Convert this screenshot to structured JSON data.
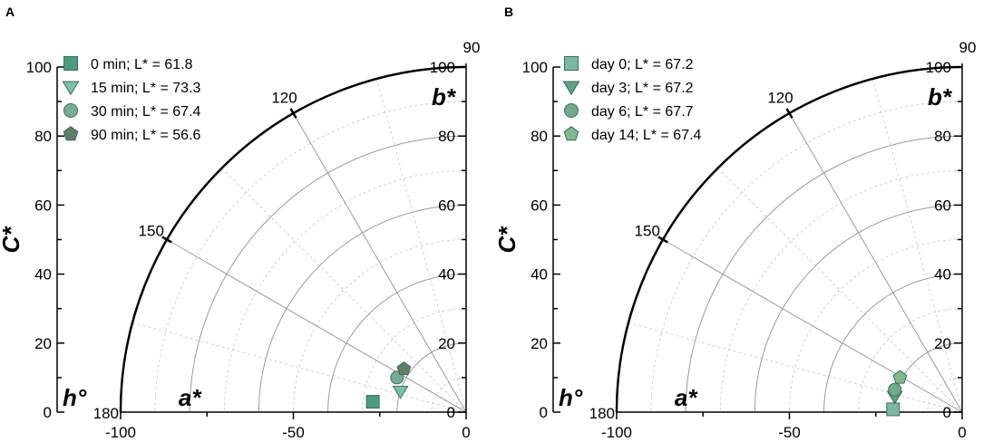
{
  "chart_data": [
    {
      "type": "scatter",
      "panel": "A",
      "coordinate_system": "polar (CIELAB hue angle vs chroma)",
      "xlabel": "a*",
      "ylabel": "C*",
      "angle_label": "h°",
      "b_label": "b*",
      "angle_ticks": [
        "90",
        "120",
        "150",
        "180"
      ],
      "radius_ticks": [
        "0",
        "20",
        "40",
        "60",
        "80",
        "100"
      ],
      "x_ticks": [
        "-100",
        "-50",
        "0"
      ],
      "xlim": [
        -100,
        0
      ],
      "ylim": [
        0,
        100
      ],
      "grid": true,
      "legend_position": "top-left",
      "series": [
        {
          "name": "0 min; L* = 61.8",
          "marker": "square",
          "color": "#4d9b82",
          "a": -27,
          "b": 3
        },
        {
          "name": "15 min; L* = 73.3",
          "marker": "triangle-down",
          "color": "#7cc1a9",
          "a": -19,
          "b": 6
        },
        {
          "name": "30 min; L* = 67.4",
          "marker": "circle",
          "color": "#75ad93",
          "a": -20,
          "b": 10
        },
        {
          "name": "90 min; L* = 56.6",
          "marker": "pentagon",
          "color": "#5d7f66",
          "a": -18,
          "b": 12.5
        }
      ]
    },
    {
      "type": "scatter",
      "panel": "B",
      "coordinate_system": "polar (CIELAB hue angle vs chroma)",
      "xlabel": "a*",
      "ylabel": "C*",
      "angle_label": "h°",
      "b_label": "b*",
      "angle_ticks": [
        "90",
        "120",
        "150",
        "180"
      ],
      "radius_ticks": [
        "0",
        "20",
        "40",
        "60",
        "80",
        "100"
      ],
      "x_ticks": [
        "-100",
        "-50",
        "0"
      ],
      "xlim": [
        -100,
        0
      ],
      "ylim": [
        0,
        100
      ],
      "grid": true,
      "legend_position": "top-left",
      "series": [
        {
          "name": "day 0; L* = 67.2",
          "marker": "square",
          "color": "#7ab8a3",
          "a": -20,
          "b": 0.8
        },
        {
          "name": "day 3; L* = 67.2",
          "marker": "triangle-down",
          "color": "#5fa083",
          "a": -19.5,
          "b": 4.5
        },
        {
          "name": "day 6; L* = 67.7",
          "marker": "circle",
          "color": "#6fac8c",
          "a": -19.5,
          "b": 6.5
        },
        {
          "name": "day 14; L* = 67.4",
          "marker": "pentagon",
          "color": "#82b78f",
          "a": -18,
          "b": 10
        }
      ]
    }
  ]
}
